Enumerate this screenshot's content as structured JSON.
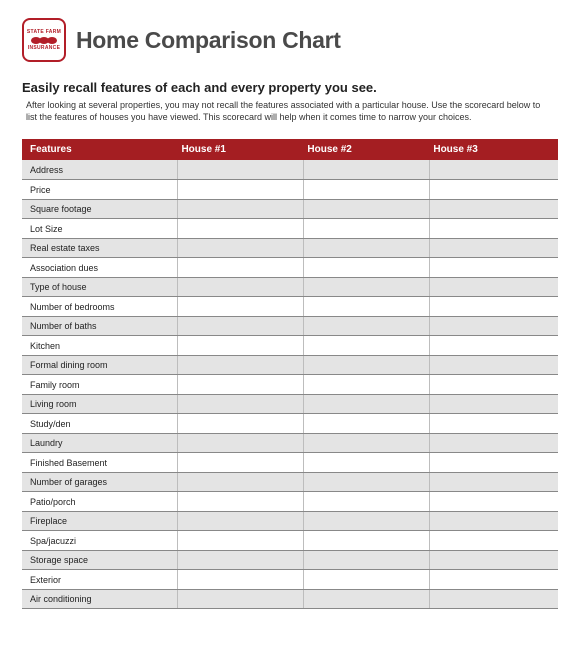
{
  "logo": {
    "top_text": "STATE FARM",
    "bottom_text": "INSURANCE",
    "border_color": "#b21e28",
    "fill_color": "#b21e28"
  },
  "header": {
    "title": "Home Comparison Chart"
  },
  "intro": {
    "subtitle": "Easily recall features of each and every property you see.",
    "description": "After looking at several properties, you may not recall the features associated with a particular house. Use the scorecard below to list the features of houses you have viewed. This scorecard will help when it comes time to narrow your choices."
  },
  "table": {
    "header_bg": "#a41e22",
    "header_text_color": "#ffffff",
    "row_alt_bg": "#e4e4e4",
    "row_bg": "#ffffff",
    "border_color": "#888888",
    "columns": [
      "Features",
      "House #1",
      "House #2",
      "House #3"
    ],
    "rows": [
      "Address",
      "Price",
      "Square footage",
      "Lot Size",
      "Real estate taxes",
      "Association dues",
      "Type of house",
      "Number of bedrooms",
      "Number of baths",
      "Kitchen",
      "Formal dining room",
      "Family room",
      "Living room",
      "Study/den",
      "Laundry",
      "Finished Basement",
      "Number of garages",
      "Patio/porch",
      "Fireplace",
      "Spa/jacuzzi",
      "Storage space",
      "Exterior",
      "Air conditioning"
    ]
  }
}
